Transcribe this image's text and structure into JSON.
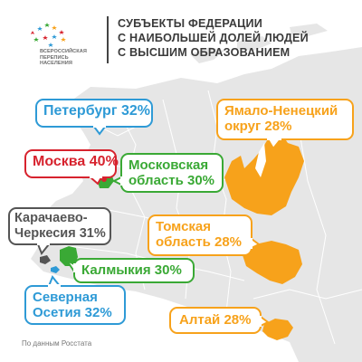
{
  "logo": {
    "lines": [
      "ВСЕРОССИЙСКАЯ",
      "ПЕРЕПИСЬ",
      "НАСЕЛЕНИЯ"
    ],
    "icon": "census-stars-logo"
  },
  "title": {
    "lines": [
      "СУБЪЕКТЫ ФЕДЕРАЦИИ",
      "С НАИБОЛЬШЕЙ ДОЛЕЙ ЛЮДЕЙ",
      "С ВЫСШИМ ОБРАЗОВАНИЕМ"
    ]
  },
  "labels": {
    "peterburg": {
      "lines": [
        "Петербург 32%"
      ],
      "color": "#2e9ad6"
    },
    "moskva": {
      "lines": [
        "Москва 40%"
      ],
      "color": "#d7232e"
    },
    "mosoblast": {
      "lines": [
        "Московская",
        "область 30%"
      ],
      "color": "#3aa935"
    },
    "karachaevo": {
      "lines": [
        "Карачаево-",
        "Черкесия 31%"
      ],
      "color": "#555555"
    },
    "kalmykia": {
      "lines": [
        "Калмыкия 30%"
      ],
      "color": "#3aa935"
    },
    "osetia": {
      "lines": [
        "Северная",
        "Осетия 32%"
      ],
      "color": "#2e9ad6"
    },
    "yamal": {
      "lines": [
        "Ямало-Ненецкий",
        "округ 28%"
      ],
      "color": "#f7a21b"
    },
    "tomsk": {
      "lines": [
        "Томская",
        "область 28%"
      ],
      "color": "#f7a21b"
    },
    "altai": {
      "lines": [
        "Алтай 28%"
      ],
      "color": "#f7a21b"
    }
  },
  "footer": {
    "text": "По данным Росстата"
  },
  "colors": {
    "land": "#e6e6e6",
    "border": "#ffffff",
    "highlight_orange": "#f7a21b",
    "highlight_green": "#3aa935",
    "highlight_red": "#d7232e",
    "highlight_blue": "#2e9ad6",
    "highlight_gray": "#555555"
  }
}
